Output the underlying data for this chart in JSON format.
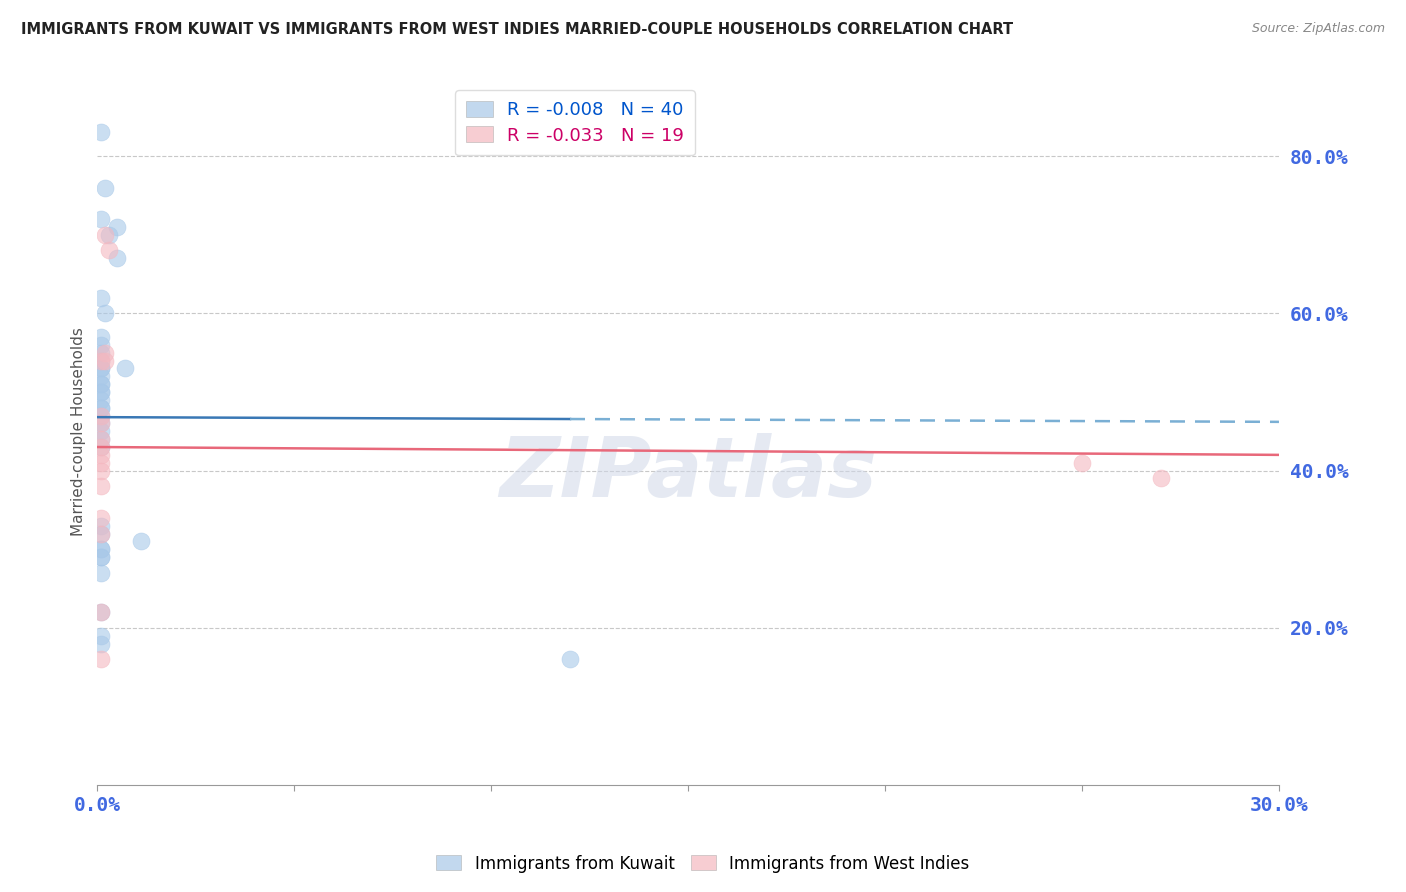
{
  "title": "IMMIGRANTS FROM KUWAIT VS IMMIGRANTS FROM WEST INDIES MARRIED-COUPLE HOUSEHOLDS CORRELATION CHART",
  "source": "Source: ZipAtlas.com",
  "ylabel": "Married-couple Households",
  "xlim": [
    0.0,
    0.3
  ],
  "ylim": [
    0.0,
    0.9
  ],
  "yticks": [
    0.2,
    0.4,
    0.6,
    0.8
  ],
  "ytick_labels": [
    "20.0%",
    "40.0%",
    "60.0%",
    "80.0%"
  ],
  "watermark": "ZIPatlas",
  "blue_scatter_x": [
    0.001,
    0.002,
    0.001,
    0.005,
    0.003,
    0.005,
    0.001,
    0.002,
    0.001,
    0.001,
    0.001,
    0.001,
    0.001,
    0.001,
    0.001,
    0.001,
    0.001,
    0.001,
    0.001,
    0.001,
    0.001,
    0.001,
    0.001,
    0.001,
    0.001,
    0.007,
    0.001,
    0.001,
    0.001,
    0.001,
    0.011,
    0.001,
    0.001,
    0.001,
    0.001,
    0.001,
    0.001,
    0.001,
    0.001,
    0.12
  ],
  "blue_scatter_y": [
    0.83,
    0.76,
    0.72,
    0.71,
    0.7,
    0.67,
    0.62,
    0.6,
    0.57,
    0.56,
    0.55,
    0.54,
    0.53,
    0.53,
    0.52,
    0.51,
    0.51,
    0.5,
    0.5,
    0.49,
    0.48,
    0.48,
    0.47,
    0.46,
    0.45,
    0.53,
    0.44,
    0.43,
    0.33,
    0.32,
    0.31,
    0.3,
    0.3,
    0.29,
    0.29,
    0.27,
    0.22,
    0.19,
    0.18,
    0.16
  ],
  "pink_scatter_x": [
    0.002,
    0.003,
    0.002,
    0.001,
    0.002,
    0.001,
    0.001,
    0.001,
    0.001,
    0.001,
    0.001,
    0.001,
    0.001,
    0.001,
    0.001,
    0.001,
    0.001,
    0.25,
    0.27
  ],
  "pink_scatter_y": [
    0.7,
    0.68,
    0.55,
    0.54,
    0.54,
    0.47,
    0.46,
    0.44,
    0.43,
    0.42,
    0.41,
    0.4,
    0.38,
    0.34,
    0.32,
    0.22,
    0.16,
    0.41,
    0.39
  ],
  "blue_line_x": [
    0.0,
    0.15,
    0.3
  ],
  "blue_line_y": [
    0.468,
    0.465,
    0.462
  ],
  "pink_line_x": [
    0.0,
    0.3
  ],
  "pink_line_y": [
    0.43,
    0.42
  ],
  "blue_color": "#a8c8e8",
  "pink_color": "#f4b8c0",
  "blue_line_solid_color": "#3a78b5",
  "blue_line_dash_color": "#7aafd4",
  "pink_line_color": "#e8687a",
  "grid_color": "#c8c8c8",
  "title_color": "#222222",
  "axis_label_color": "#4169e1",
  "ylabel_color": "#555555",
  "background_color": "#ffffff",
  "legend_r1": "R = ",
  "legend_v1": "-0.008",
  "legend_n1": "  N = ",
  "legend_nv1": "40",
  "legend_r2": "R = ",
  "legend_v2": "-0.033",
  "legend_n2": "  N = ",
  "legend_nv2": "19",
  "bottom_legend_label1": "Immigrants from Kuwait",
  "bottom_legend_label2": "Immigrants from West Indies",
  "source_color": "#888888",
  "watermark_text": "ZIPatlas"
}
